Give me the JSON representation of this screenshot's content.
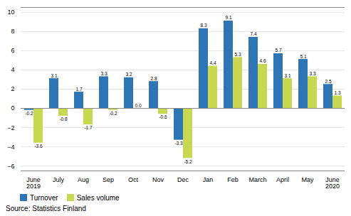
{
  "chart_data": {
    "type": "bar",
    "categories": [
      "June\n2019",
      "July",
      "Aug",
      "Sep",
      "Oct",
      "Nov",
      "Dec",
      "Jan",
      "Feb",
      "March",
      "April",
      "May",
      "June\n2020"
    ],
    "series": [
      {
        "name": "Turnover",
        "color": "#2e75b6",
        "values": [
          -0.2,
          3.1,
          1.7,
          3.3,
          3.2,
          2.8,
          -3.3,
          8.3,
          9.1,
          7.4,
          5.7,
          5.1,
          2.5
        ]
      },
      {
        "name": "Sales volume",
        "color": "#c8d850",
        "values": [
          -3.6,
          -0.8,
          -1.7,
          -0.2,
          0.0,
          -0.6,
          -5.2,
          4.4,
          5.3,
          4.6,
          3.1,
          3.3,
          1.3
        ],
        "value_labels": [
          "-3.6",
          "-0.8",
          "-1.7",
          "-0.2",
          "0.0",
          "-0.6",
          "-5.2",
          "4.4",
          "5.3",
          "4.6",
          "3.1",
          "3.3",
          "1.3"
        ]
      }
    ],
    "ylim": [
      -6.5,
      10.5
    ],
    "yticks": [
      -6,
      -4,
      -2,
      0,
      2,
      4,
      6,
      8,
      10
    ],
    "grid": true,
    "data_labels": true,
    "legend": "lower left",
    "annotations": [
      "Source: Statistics Finland"
    ]
  }
}
